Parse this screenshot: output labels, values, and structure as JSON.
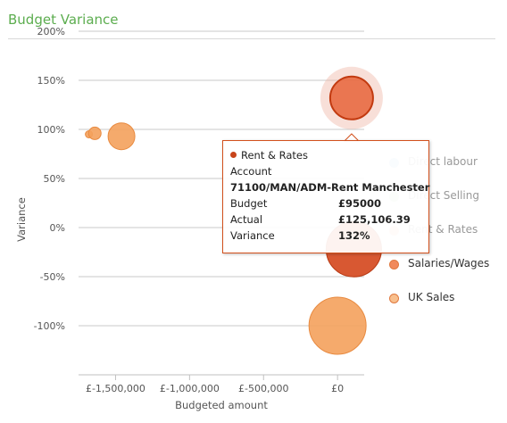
{
  "panel": {
    "title": "Budget Variance"
  },
  "chart_data": {
    "type": "bubble",
    "title": "",
    "xlabel": "Budgeted amount",
    "ylabel": "Variance",
    "xlim": [
      -1750000,
      180000
    ],
    "ylim": [
      -150,
      210
    ],
    "x_ticks": [
      -1500000,
      -1000000,
      -500000,
      0
    ],
    "x_tick_labels": [
      "£-1,500,000",
      "£-1,000,000",
      "£-500,000",
      "£0"
    ],
    "y_ticks": [
      200,
      150,
      100,
      50,
      0,
      -50,
      -100
    ],
    "y_tick_labels": [
      "200%",
      "150%",
      "100%",
      "50%",
      "0%",
      "-50%",
      "-100%"
    ],
    "grid": "horizontal",
    "legend_position": "right",
    "series": [
      {
        "name": "Direct labour",
        "color": "#a9cce8",
        "points": []
      },
      {
        "name": "Direct Selling",
        "color": "#bfe0b0",
        "points": []
      },
      {
        "name": "Rent & Rates",
        "color": "#e8643a",
        "points": [
          {
            "x": 95000,
            "y": 132,
            "size": 24
          }
        ]
      },
      {
        "name": "Salaries/Wages",
        "color": "#d4461c",
        "points": [
          {
            "x": 110000,
            "y": -22,
            "size": 31
          }
        ]
      },
      {
        "name": "UK Sales",
        "color": "#f4a15c",
        "points": [
          {
            "x": -1680000,
            "y": 95,
            "size": 4
          },
          {
            "x": -1640000,
            "y": 96,
            "size": 7
          },
          {
            "x": -1460000,
            "y": 93,
            "size": 15
          },
          {
            "x": 0,
            "y": -100,
            "size": 32
          }
        ]
      }
    ]
  },
  "legend": {
    "items": [
      {
        "name": "Direct labour",
        "color": "#a9cce8",
        "faded": true
      },
      {
        "name": "Direct Selling",
        "color": "#bfe0b0",
        "faded": true
      },
      {
        "name": "Rent & Rates",
        "color": "#f3c2ae",
        "faded": true
      },
      {
        "name": "Salaries/Wages",
        "color": "#f18a5c",
        "faded": false
      },
      {
        "name": "UK Sales",
        "color": "#f8bf8d",
        "faded": false
      }
    ]
  },
  "tooltip": {
    "series": "Rent & Rates",
    "account_label": "Account",
    "account": "71100/MAN/ADM-Rent Manchester",
    "budget_label": "Budget",
    "budget": "£95000",
    "actual_label": "Actual",
    "actual": "£125,106.39",
    "variance_label": "Variance",
    "variance": "132%"
  }
}
